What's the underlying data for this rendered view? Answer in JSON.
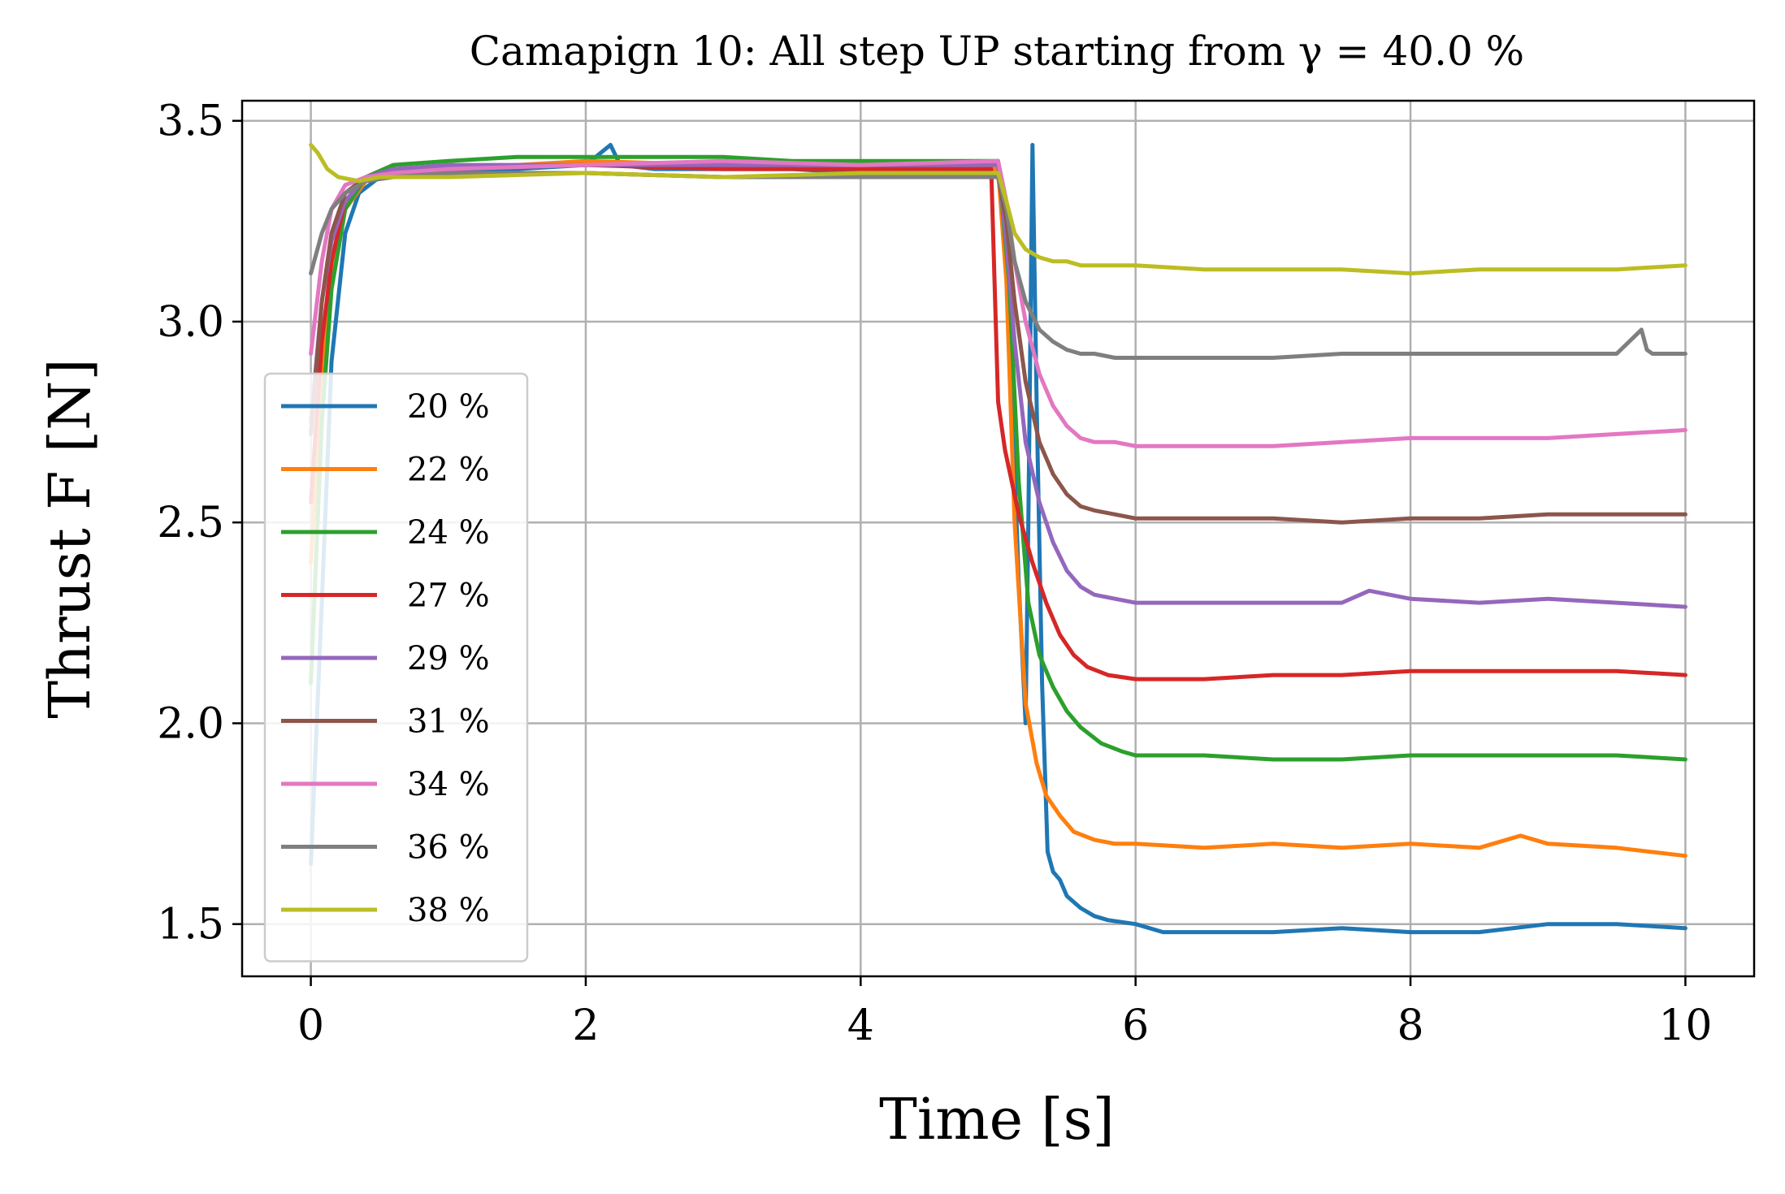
{
  "chart_data": {
    "type": "line",
    "title": "Camapign 10: All step UP starting from γ = 40.0 %",
    "xlabel": "Time [s]",
    "ylabel": "Thrust F [N]",
    "xlim": [
      -0.5,
      10.5
    ],
    "ylim": [
      1.37,
      3.55
    ],
    "xticks": [
      0,
      2,
      4,
      6,
      8,
      10
    ],
    "xtick_labels": [
      "0",
      "2",
      "4",
      "6",
      "8",
      "10"
    ],
    "yticks": [
      1.5,
      2.0,
      2.5,
      3.0,
      3.5
    ],
    "ytick_labels": [
      "1.5",
      "2.0",
      "2.5",
      "3.0",
      "3.5"
    ],
    "grid": true,
    "legend_position": "lower-left",
    "series": [
      {
        "name": "20 %",
        "color": "#1f77b4",
        "x": [
          0,
          0.08,
          0.15,
          0.25,
          0.35,
          0.5,
          1,
          1.5,
          2,
          2.18,
          2.25,
          2.5,
          3,
          3.5,
          4,
          4.5,
          5.0,
          5.08,
          5.15,
          5.2,
          5.22,
          5.25,
          5.28,
          5.32,
          5.36,
          5.4,
          5.45,
          5.5,
          5.6,
          5.7,
          5.8,
          6,
          6.2,
          6.5,
          7,
          7.5,
          8,
          8.5,
          9,
          9.5,
          10
        ],
        "y": [
          1.65,
          2.3,
          2.9,
          3.22,
          3.32,
          3.36,
          3.37,
          3.38,
          3.39,
          3.44,
          3.39,
          3.38,
          3.38,
          3.38,
          3.37,
          3.38,
          3.4,
          3.02,
          2.35,
          2.0,
          2.5,
          3.44,
          2.8,
          2.1,
          1.68,
          1.63,
          1.61,
          1.57,
          1.54,
          1.52,
          1.51,
          1.5,
          1.48,
          1.48,
          1.48,
          1.49,
          1.48,
          1.48,
          1.5,
          1.5,
          1.49
        ]
      },
      {
        "name": "22 %",
        "color": "#ff7f0e",
        "x": [
          0,
          0.08,
          0.15,
          0.25,
          0.4,
          0.6,
          1,
          2,
          3,
          4,
          5.0,
          5.06,
          5.12,
          5.2,
          5.28,
          5.35,
          5.45,
          5.55,
          5.7,
          5.85,
          6,
          6.5,
          7,
          7.5,
          8,
          8.5,
          8.8,
          9,
          9.5,
          10
        ],
        "y": [
          2.4,
          2.85,
          3.1,
          3.28,
          3.35,
          3.37,
          3.38,
          3.4,
          3.39,
          3.39,
          3.38,
          3.1,
          2.5,
          2.05,
          1.9,
          1.82,
          1.77,
          1.73,
          1.71,
          1.7,
          1.7,
          1.69,
          1.7,
          1.69,
          1.7,
          1.69,
          1.72,
          1.7,
          1.69,
          1.67
        ]
      },
      {
        "name": "24 %",
        "color": "#2ca02c",
        "x": [
          0,
          0.08,
          0.15,
          0.25,
          0.4,
          0.6,
          1,
          1.5,
          2,
          2.5,
          3,
          3.5,
          4,
          4.5,
          5.0,
          5.08,
          5.15,
          5.22,
          5.3,
          5.4,
          5.5,
          5.6,
          5.75,
          5.9,
          6,
          6.5,
          7,
          7.5,
          8,
          8.5,
          9,
          9.5,
          10
        ],
        "y": [
          2.1,
          2.75,
          3.08,
          3.28,
          3.36,
          3.39,
          3.4,
          3.41,
          3.41,
          3.41,
          3.41,
          3.4,
          3.4,
          3.4,
          3.4,
          3.1,
          2.6,
          2.3,
          2.17,
          2.09,
          2.03,
          1.99,
          1.95,
          1.93,
          1.92,
          1.92,
          1.91,
          1.91,
          1.92,
          1.92,
          1.92,
          1.92,
          1.91
        ]
      },
      {
        "name": "27 %",
        "color": "#d62728",
        "x": [
          0,
          0.08,
          0.15,
          0.25,
          0.4,
          0.6,
          1,
          2,
          3,
          4,
          4.95,
          5.0,
          5.05,
          5.15,
          5.25,
          5.35,
          5.45,
          5.55,
          5.65,
          5.8,
          6,
          6.5,
          7,
          7.5,
          8,
          8.5,
          9,
          9.5,
          10
        ],
        "y": [
          2.55,
          2.95,
          3.15,
          3.3,
          3.36,
          3.38,
          3.38,
          3.39,
          3.38,
          3.38,
          3.38,
          2.8,
          2.68,
          2.52,
          2.4,
          2.3,
          2.22,
          2.17,
          2.14,
          2.12,
          2.11,
          2.11,
          2.12,
          2.12,
          2.13,
          2.13,
          2.13,
          2.13,
          2.12
        ]
      },
      {
        "name": "29 %",
        "color": "#9467bd",
        "x": [
          0,
          0.08,
          0.15,
          0.25,
          0.4,
          0.6,
          1,
          2,
          3,
          4,
          5.0,
          5.06,
          5.12,
          5.2,
          5.3,
          5.4,
          5.5,
          5.6,
          5.7,
          5.85,
          6,
          6.5,
          7,
          7.5,
          7.7,
          8,
          8.5,
          9,
          9.5,
          10
        ],
        "y": [
          2.75,
          3.05,
          3.2,
          3.3,
          3.36,
          3.38,
          3.39,
          3.39,
          3.39,
          3.39,
          3.39,
          3.2,
          2.95,
          2.7,
          2.55,
          2.45,
          2.38,
          2.34,
          2.32,
          2.31,
          2.3,
          2.3,
          2.3,
          2.3,
          2.33,
          2.31,
          2.3,
          2.31,
          2.3,
          2.29
        ]
      },
      {
        "name": "31 %",
        "color": "#8c564b",
        "x": [
          0,
          0.08,
          0.15,
          0.25,
          0.4,
          0.6,
          1,
          2,
          3,
          4,
          5.0,
          5.06,
          5.12,
          5.2,
          5.3,
          5.4,
          5.5,
          5.6,
          5.7,
          5.85,
          6,
          6.5,
          7,
          7.5,
          8,
          8.5,
          9,
          9.5,
          10
        ],
        "y": [
          2.72,
          3.05,
          3.22,
          3.32,
          3.36,
          3.37,
          3.37,
          3.37,
          3.36,
          3.36,
          3.36,
          3.25,
          3.05,
          2.85,
          2.7,
          2.62,
          2.57,
          2.54,
          2.53,
          2.52,
          2.51,
          2.51,
          2.51,
          2.5,
          2.51,
          2.51,
          2.52,
          2.52,
          2.52
        ]
      },
      {
        "name": "34 %",
        "color": "#e377c2",
        "x": [
          0,
          0.08,
          0.15,
          0.25,
          0.4,
          0.6,
          1,
          2,
          3,
          4,
          5.0,
          5.06,
          5.12,
          5.2,
          5.3,
          5.4,
          5.5,
          5.6,
          5.7,
          5.85,
          6,
          6.5,
          7,
          7.5,
          8,
          8.5,
          9,
          9.5,
          10
        ],
        "y": [
          2.92,
          3.15,
          3.28,
          3.34,
          3.36,
          3.37,
          3.38,
          3.39,
          3.4,
          3.39,
          3.4,
          3.3,
          3.15,
          3.0,
          2.87,
          2.79,
          2.74,
          2.71,
          2.7,
          2.7,
          2.69,
          2.69,
          2.69,
          2.7,
          2.71,
          2.71,
          2.71,
          2.72,
          2.73
        ]
      },
      {
        "name": "36 %",
        "color": "#7f7f7f",
        "x": [
          0,
          0.08,
          0.15,
          0.25,
          0.4,
          0.6,
          1,
          2,
          3,
          4,
          5.0,
          5.06,
          5.12,
          5.2,
          5.3,
          5.4,
          5.5,
          5.6,
          5.7,
          5.85,
          6,
          6.5,
          7,
          7.5,
          8,
          8.5,
          9,
          9.5,
          9.68,
          9.72,
          9.76,
          10
        ],
        "y": [
          3.12,
          3.22,
          3.28,
          3.32,
          3.35,
          3.36,
          3.37,
          3.37,
          3.36,
          3.36,
          3.36,
          3.28,
          3.15,
          3.05,
          2.98,
          2.95,
          2.93,
          2.92,
          2.92,
          2.91,
          2.91,
          2.91,
          2.91,
          2.92,
          2.92,
          2.92,
          2.92,
          2.92,
          2.98,
          2.93,
          2.92,
          2.92
        ]
      },
      {
        "name": "38 %",
        "color": "#bcbd22",
        "x": [
          0,
          0.05,
          0.12,
          0.2,
          0.35,
          0.5,
          0.8,
          1,
          2,
          3,
          4,
          5.0,
          5.06,
          5.12,
          5.2,
          5.3,
          5.4,
          5.5,
          5.6,
          5.8,
          6,
          6.5,
          7,
          7.5,
          8,
          8.5,
          9,
          9.5,
          10
        ],
        "y": [
          3.44,
          3.42,
          3.38,
          3.36,
          3.35,
          3.36,
          3.36,
          3.36,
          3.37,
          3.36,
          3.37,
          3.37,
          3.3,
          3.22,
          3.18,
          3.16,
          3.15,
          3.15,
          3.14,
          3.14,
          3.14,
          3.13,
          3.13,
          3.13,
          3.12,
          3.13,
          3.13,
          3.13,
          3.14
        ]
      }
    ]
  }
}
